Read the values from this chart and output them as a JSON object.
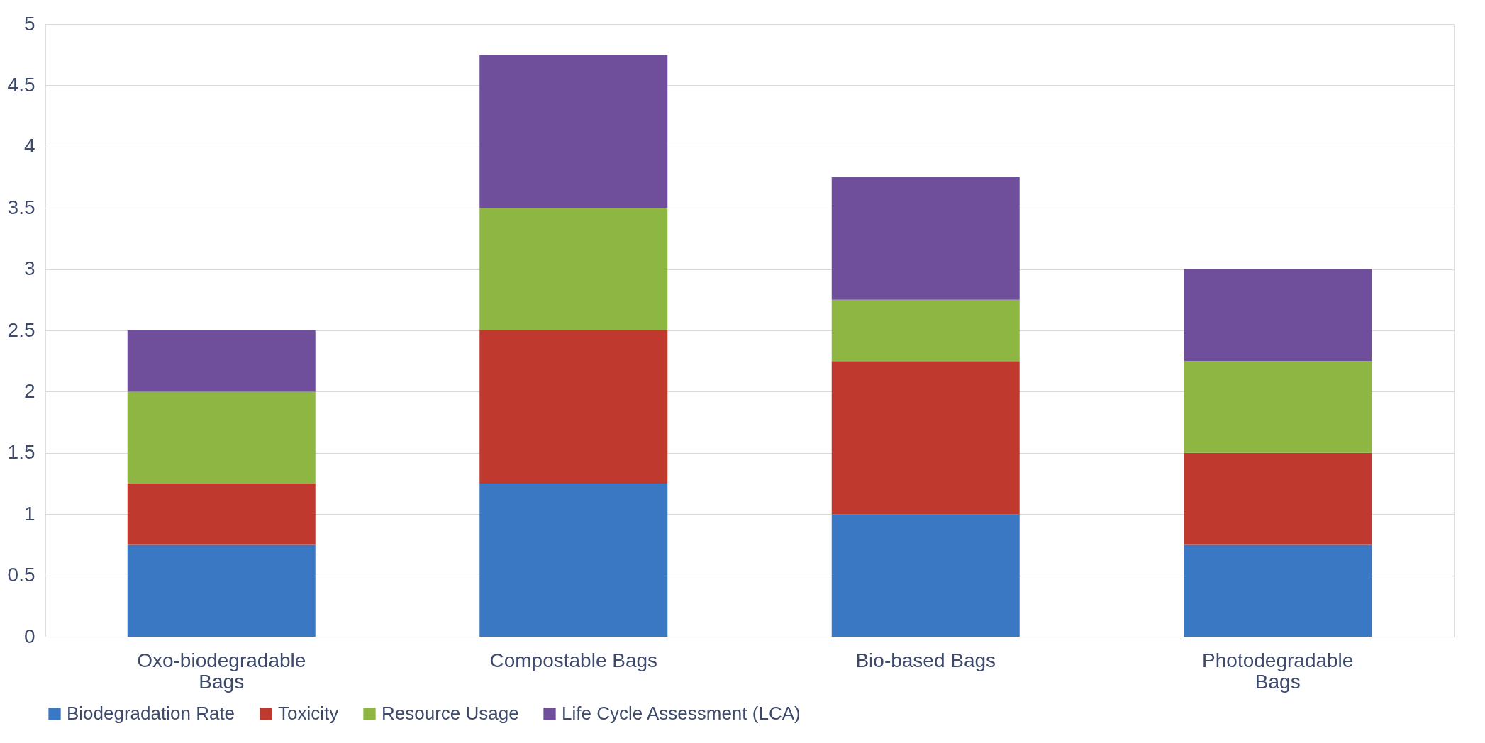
{
  "chart_data": {
    "type": "bar",
    "stacked": true,
    "categories": [
      "Oxo-biodegradable Bags",
      "Compostable Bags",
      "Bio-based Bags",
      "Photodegradable Bags"
    ],
    "series": [
      {
        "name": "Biodegradation Rate",
        "color": "#3b78c4",
        "values": [
          0.75,
          1.25,
          1,
          0.75
        ]
      },
      {
        "name": "Toxicity",
        "color": "#c0392f",
        "values": [
          0.5,
          1.25,
          1.25,
          0.75
        ]
      },
      {
        "name": "Resource Usage",
        "color": "#8db642",
        "values": [
          0.75,
          1,
          0.5,
          0.75
        ]
      },
      {
        "name": "Life Cycle Assessment (LCA)",
        "color": "#6f4f9c",
        "values": [
          0.5,
          1.25,
          1,
          0.75
        ]
      }
    ],
    "ylim": [
      0,
      5
    ],
    "yticks": [
      0,
      0.5,
      1,
      1.5,
      2,
      2.5,
      3,
      3.5,
      4,
      4.5,
      5
    ],
    "grid": "y",
    "legend": "bottom"
  }
}
